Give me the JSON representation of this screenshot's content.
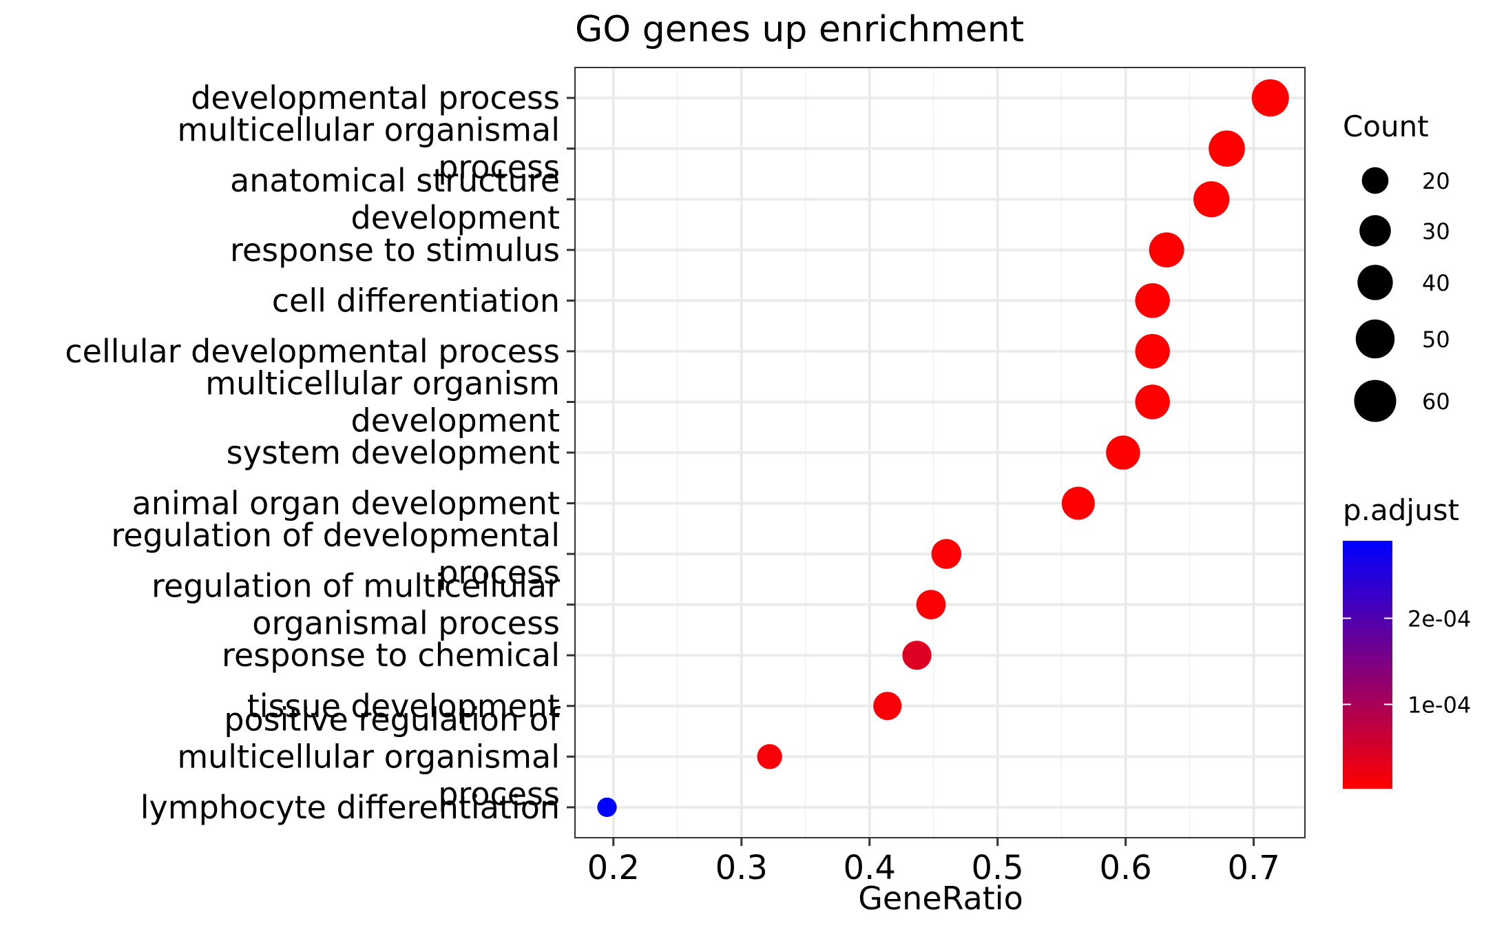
{
  "chart_data": {
    "type": "scatter",
    "title": "GO genes up enrichment",
    "xlabel": "GeneRatio",
    "ylabel": "",
    "xlim": [
      0.17,
      0.74
    ],
    "xticks": [
      0.2,
      0.3,
      0.4,
      0.5,
      0.6,
      0.7
    ],
    "xtick_labels": [
      "0.2",
      "0.3",
      "0.4",
      "0.5",
      "0.6",
      "0.7"
    ],
    "grid": true,
    "points": [
      {
        "term": "developmental process",
        "gene_ratio": 0.713,
        "count": 62,
        "p_adjust": 2e-06
      },
      {
        "term": "multicellular organismal process",
        "gene_ratio": 0.679,
        "count": 59,
        "p_adjust": 2e-06
      },
      {
        "term": "anatomical structure development",
        "gene_ratio": 0.667,
        "count": 58,
        "p_adjust": 2e-06
      },
      {
        "term": "response to stimulus",
        "gene_ratio": 0.632,
        "count": 55,
        "p_adjust": 2e-06
      },
      {
        "term": "cell differentiation",
        "gene_ratio": 0.621,
        "count": 54,
        "p_adjust": 2e-06
      },
      {
        "term": "cellular developmental process",
        "gene_ratio": 0.621,
        "count": 54,
        "p_adjust": 2e-06
      },
      {
        "term": "multicellular organism development",
        "gene_ratio": 0.621,
        "count": 54,
        "p_adjust": 2e-06
      },
      {
        "term": "system development",
        "gene_ratio": 0.598,
        "count": 52,
        "p_adjust": 2e-06
      },
      {
        "term": "animal organ development",
        "gene_ratio": 0.563,
        "count": 49,
        "p_adjust": 2e-06
      },
      {
        "term": "regulation of developmental process",
        "gene_ratio": 0.46,
        "count": 40,
        "p_adjust": 5e-06
      },
      {
        "term": "regulation of multicellular organismal process",
        "gene_ratio": 0.448,
        "count": 39,
        "p_adjust": 5e-06
      },
      {
        "term": "response to chemical",
        "gene_ratio": 0.437,
        "count": 38,
        "p_adjust": 4e-05
      },
      {
        "term": "tissue development",
        "gene_ratio": 0.414,
        "count": 36,
        "p_adjust": 1e-05
      },
      {
        "term": "positive regulation of multicellular organismal process",
        "gene_ratio": 0.322,
        "count": 28,
        "p_adjust": 1e-05
      },
      {
        "term": "lymphocyte differentiation",
        "gene_ratio": 0.195,
        "count": 17,
        "p_adjust": 0.00029
      }
    ],
    "y_labels": [
      [
        "developmental process"
      ],
      [
        "multicellular organismal",
        "process"
      ],
      [
        "anatomical structure",
        "development"
      ],
      [
        "response to stimulus"
      ],
      [
        "cell differentiation"
      ],
      [
        "cellular developmental process"
      ],
      [
        "multicellular organism",
        "development"
      ],
      [
        "system development"
      ],
      [
        "animal organ development"
      ],
      [
        "regulation of developmental",
        "process"
      ],
      [
        "regulation of multicellular",
        "organismal process"
      ],
      [
        "response to chemical"
      ],
      [
        "tissue development"
      ],
      [
        "positive regulation of",
        "multicellular organismal",
        "process"
      ],
      [
        "lymphocyte differentiation"
      ]
    ],
    "size_legend": {
      "title": "Count",
      "entries": [
        {
          "value": 20,
          "label": "20"
        },
        {
          "value": 30,
          "label": "30"
        },
        {
          "value": 40,
          "label": "40"
        },
        {
          "value": 50,
          "label": "50"
        },
        {
          "value": 60,
          "label": "60"
        }
      ]
    },
    "color_legend": {
      "title": "p.adjust",
      "low_color": "#ff0000",
      "high_color": "#0000ff",
      "range": [
        2e-06,
        0.00029
      ],
      "ticks": [
        {
          "value": 0.0002,
          "label": "2e-04"
        },
        {
          "value": 0.0001,
          "label": "1e-04"
        }
      ]
    },
    "colors": {
      "grid_major": "#ebebeb",
      "grid_minor": "#f4f4f4",
      "panel_border": "#333333"
    }
  }
}
